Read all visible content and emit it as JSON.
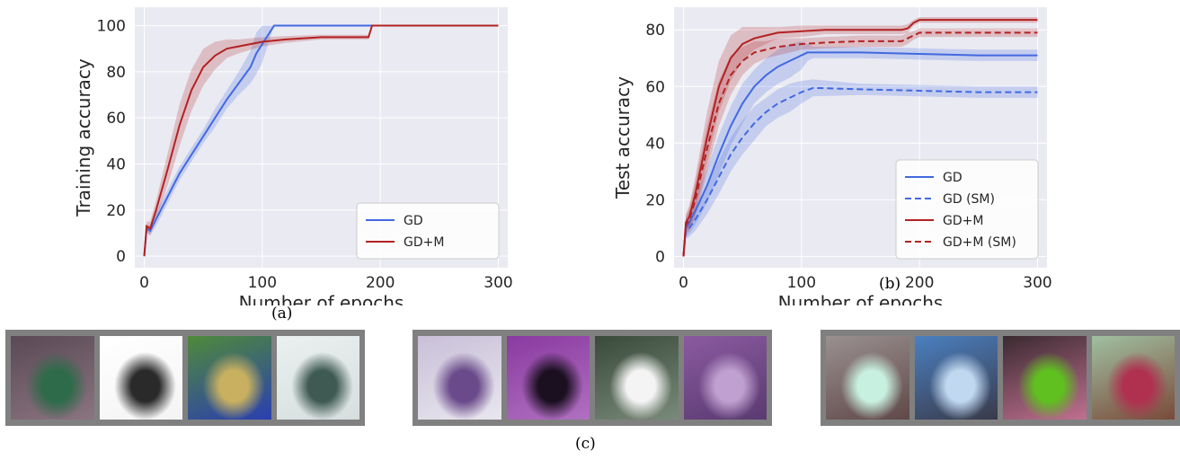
{
  "colors": {
    "gd": "#4169e1",
    "gdm": "#b22222"
  },
  "panel_labels": {
    "a": "(a)",
    "b": "(b)",
    "c": "(c)"
  },
  "chart_data": [
    {
      "type": "line",
      "title": "",
      "xlabel": "Number of epochs",
      "ylabel": "Training accuracy",
      "xlim": [
        -8,
        308
      ],
      "ylim": [
        -5,
        108
      ],
      "xticks": [
        0,
        100,
        200,
        300
      ],
      "yticks": [
        0,
        20,
        40,
        60,
        80,
        100
      ],
      "grid": true,
      "legend": "bottom-right",
      "series": [
        {
          "name": "GD",
          "color": "#4169e1",
          "dash": false,
          "x": [
            0,
            2,
            5,
            10,
            20,
            30,
            40,
            50,
            60,
            70,
            80,
            90,
            95,
            100,
            105,
            110,
            150,
            200,
            250,
            300
          ],
          "y": [
            0,
            12,
            11,
            16,
            26,
            36,
            44,
            52,
            60,
            68,
            75,
            82,
            88,
            92,
            96,
            100,
            100,
            100,
            100,
            100
          ],
          "band": [
            0,
            2,
            2,
            3,
            3,
            3,
            3,
            3,
            4,
            4,
            5,
            7,
            9,
            8,
            4,
            0,
            0,
            0,
            0,
            0
          ]
        },
        {
          "name": "GD+M",
          "color": "#b22222",
          "dash": false,
          "x": [
            0,
            2,
            5,
            10,
            20,
            30,
            40,
            50,
            60,
            70,
            80,
            100,
            120,
            150,
            180,
            190,
            193,
            200,
            250,
            300
          ],
          "y": [
            0,
            13,
            12,
            20,
            38,
            57,
            72,
            82,
            87,
            90,
            91,
            93,
            94,
            95,
            95,
            95,
            100,
            100,
            100,
            100
          ],
          "band": [
            0,
            2,
            3,
            4,
            7,
            9,
            9,
            8,
            6,
            4,
            3,
            2,
            1.5,
            1,
            1,
            1,
            0,
            0,
            0,
            0
          ]
        }
      ]
    },
    {
      "type": "line",
      "title": "",
      "xlabel": "Number of epochs",
      "ylabel": "Test accuracy",
      "xlim": [
        -8,
        308
      ],
      "ylim": [
        -4,
        88
      ],
      "xticks": [
        0,
        100,
        200,
        300
      ],
      "yticks": [
        0,
        20,
        40,
        60,
        80
      ],
      "grid": true,
      "legend": "bottom-right",
      "series": [
        {
          "name": "GD",
          "color": "#4169e1",
          "dash": false,
          "x": [
            0,
            2,
            5,
            10,
            20,
            30,
            40,
            50,
            60,
            70,
            80,
            90,
            100,
            105,
            110,
            150,
            200,
            250,
            300
          ],
          "y": [
            0,
            10,
            12,
            16,
            25,
            36,
            46,
            54,
            60,
            64,
            67,
            69,
            71,
            72,
            72,
            72,
            71.5,
            71,
            71
          ],
          "band": [
            0,
            3,
            4,
            5,
            6,
            7,
            7,
            7,
            6,
            6,
            6,
            6,
            5,
            3,
            2,
            2,
            2,
            2,
            2
          ]
        },
        {
          "name": "GD (SM)",
          "color": "#4169e1",
          "dash": true,
          "x": [
            0,
            2,
            5,
            10,
            20,
            30,
            40,
            50,
            60,
            70,
            80,
            90,
            100,
            110,
            150,
            200,
            250,
            300
          ],
          "y": [
            0,
            9,
            10,
            13,
            20,
            28,
            36,
            42,
            47,
            51,
            54,
            56,
            58,
            59.5,
            59,
            58.5,
            58,
            58
          ],
          "band": [
            0,
            3,
            3,
            4,
            5,
            6,
            6,
            6,
            6,
            5,
            5,
            5,
            4,
            3,
            2,
            2,
            2,
            2
          ]
        },
        {
          "name": "GD+M",
          "color": "#b22222",
          "dash": false,
          "x": [
            0,
            2,
            5,
            10,
            20,
            30,
            40,
            50,
            60,
            70,
            80,
            100,
            120,
            150,
            185,
            190,
            195,
            200,
            250,
            300
          ],
          "y": [
            0,
            12,
            14,
            22,
            42,
            60,
            70,
            75,
            77,
            78,
            79,
            79.5,
            80,
            80,
            80,
            80.5,
            82.5,
            83.5,
            83.5,
            83.5
          ],
          "band": [
            0,
            3,
            4,
            6,
            9,
            9,
            8,
            6,
            4,
            3,
            2,
            2,
            1.5,
            1.5,
            1.5,
            1.5,
            1,
            1,
            1,
            1
          ]
        },
        {
          "name": "GD+M (SM)",
          "color": "#b22222",
          "dash": true,
          "x": [
            0,
            2,
            5,
            10,
            20,
            30,
            40,
            50,
            60,
            70,
            80,
            100,
            120,
            150,
            185,
            190,
            195,
            200,
            250,
            300
          ],
          "y": [
            0,
            11,
            13,
            20,
            38,
            54,
            64,
            69,
            72,
            73,
            74,
            75,
            75.5,
            76,
            76,
            77,
            78,
            79,
            79,
            79
          ],
          "band": [
            0,
            3,
            4,
            6,
            8,
            8,
            7,
            5,
            4,
            3,
            3,
            2,
            2,
            2,
            2,
            2,
            1.5,
            1.5,
            1.5,
            1.5
          ]
        }
      ]
    }
  ],
  "image_strips": [
    [
      {
        "name": "ship-thumbnail",
        "colors": [
          "#5a4a55",
          "#2e6b4a",
          "#8a7480"
        ]
      },
      {
        "name": "stealth-plane-thumbnail",
        "colors": [
          "#ffffff",
          "#2a2a2a",
          "#f4f4f4"
        ]
      },
      {
        "name": "tanker-ship-thumbnail",
        "colors": [
          "#4f8a3a",
          "#c8b060",
          "#2b3fb0"
        ]
      },
      {
        "name": "airplane-thumbnail",
        "colors": [
          "#eaf0f0",
          "#3f5a52",
          "#d6dede"
        ]
      }
    ],
    [
      {
        "name": "horse-thumbnail",
        "colors": [
          "#c9c0d8",
          "#6a4a8a",
          "#e8e6ee"
        ]
      },
      {
        "name": "ostrich-thumbnail",
        "colors": [
          "#8a3aa0",
          "#1a1020",
          "#b070c0"
        ]
      },
      {
        "name": "car-thumbnail",
        "colors": [
          "#3a4a3a",
          "#f4f4f4",
          "#7a8a7a"
        ]
      },
      {
        "name": "frog-thumbnail",
        "colors": [
          "#8a5aa0",
          "#c0a0d0",
          "#5a3a70"
        ]
      }
    ],
    [
      {
        "name": "dog-thumbnail",
        "colors": [
          "#9a9090",
          "#c8f0e0",
          "#604848"
        ]
      },
      {
        "name": "boat-thumbnail",
        "colors": [
          "#4a80c0",
          "#c0d8f0",
          "#3a3a4a"
        ]
      },
      {
        "name": "plant-thumbnail",
        "colors": [
          "#3a2a30",
          "#60c020",
          "#c07090"
        ]
      },
      {
        "name": "bird-thumbnail",
        "colors": [
          "#a0c0a0",
          "#b03050",
          "#7a4a3a"
        ]
      }
    ]
  ]
}
